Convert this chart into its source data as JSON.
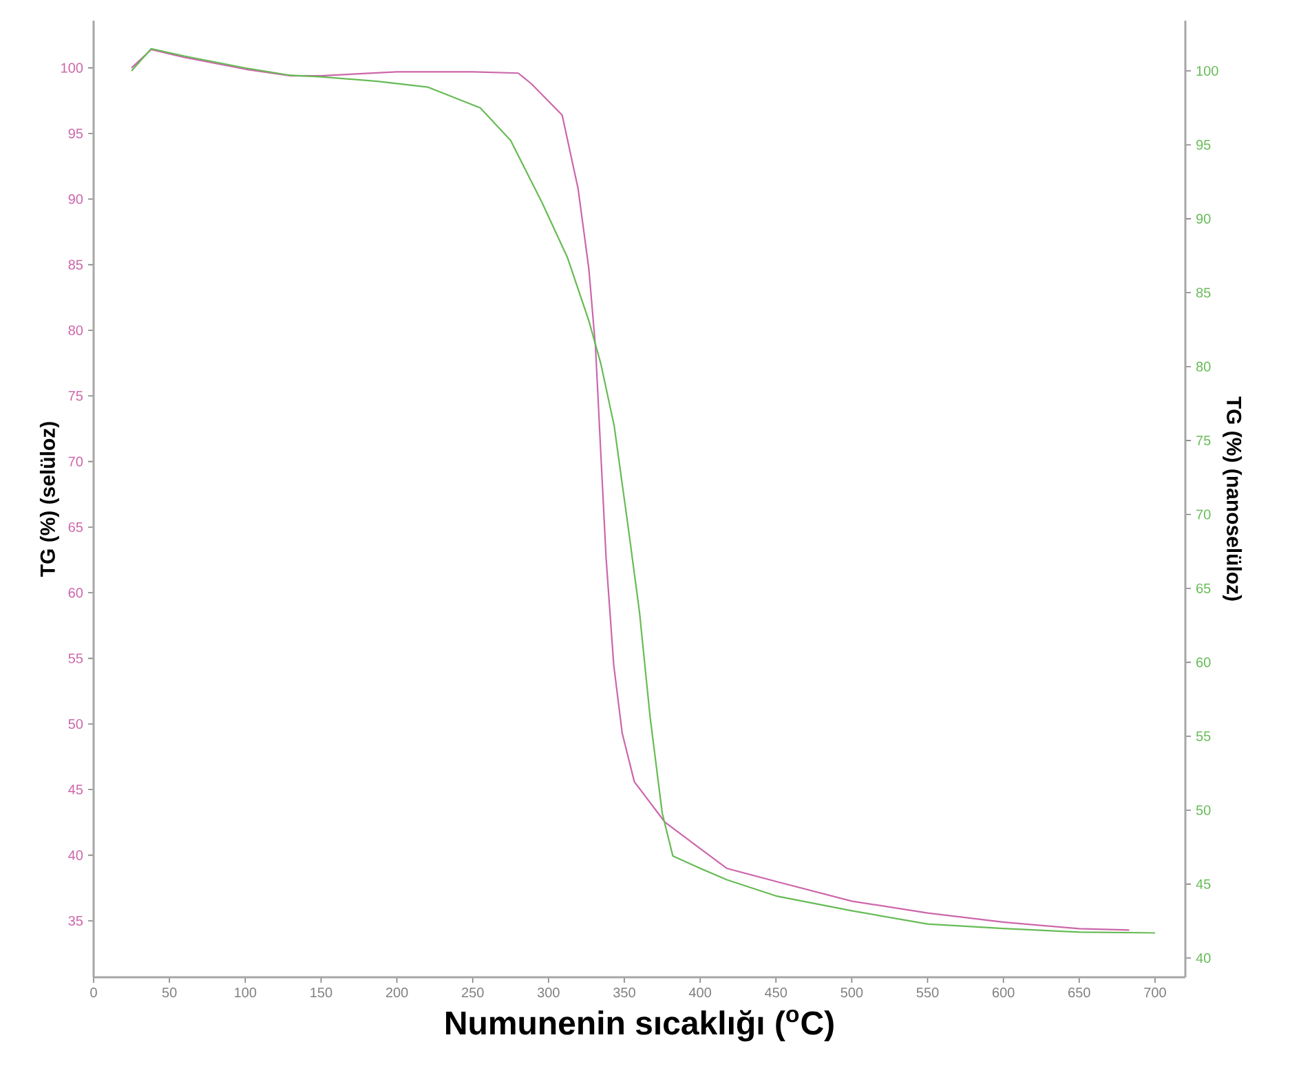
{
  "chart_data": {
    "type": "line",
    "xlabel": "Numunenin sıcaklığı ($^{o}$C)",
    "ylabel": "TG (%) (selüloz)",
    "y2label": "TG (%) (nanoselüloz)",
    "xlim": [
      0,
      720
    ],
    "xticks": [
      0,
      50,
      100,
      150,
      200,
      250,
      300,
      350,
      400,
      450,
      500,
      550,
      600,
      650,
      700
    ],
    "ylim": [
      30.7,
      103.6
    ],
    "yticks": [
      35,
      40,
      45,
      50,
      55,
      60,
      65,
      70,
      75,
      80,
      85,
      90,
      95,
      100
    ],
    "y2lim": [
      38.7,
      103.4
    ],
    "y2ticks": [
      40,
      45,
      50,
      55,
      60,
      65,
      70,
      75,
      80,
      85,
      90,
      95,
      100
    ],
    "series": [
      {
        "color": "#cc66aa",
        "x": [
          25,
          38,
          60,
          100,
          130,
          150,
          200,
          250,
          280,
          288.6,
          309,
          319.5,
          326.6,
          331,
          334.5,
          338,
          343,
          348.6,
          356.6,
          376.9,
          417.5,
          450,
          500,
          550,
          600,
          650,
          683
        ],
        "values": [
          100,
          101.4,
          100.8,
          99.9,
          99.4,
          99.4,
          99.7,
          99.7,
          99.6,
          98.8,
          96.4,
          90.8,
          84.7,
          78.7,
          70.6,
          62.6,
          54.5,
          49.3,
          45.6,
          42.5,
          39.0,
          38.0,
          36.5,
          35.6,
          34.9,
          34.4,
          34.3
        ]
      },
      {
        "color": "#66bb55",
        "axis": "y2",
        "x": [
          25,
          38,
          60,
          100,
          130,
          150,
          187,
          220.6,
          255,
          275,
          295.7,
          312.4,
          326.6,
          334.5,
          343.3,
          353,
          360,
          367,
          375,
          382,
          397,
          417.5,
          450,
          500,
          550,
          600,
          650,
          700
        ],
        "values": [
          100.0,
          101.5,
          101.0,
          100.2,
          99.7,
          99.6,
          99.3,
          98.9,
          97.5,
          95.3,
          91.1,
          87.4,
          83.1,
          80.2,
          76.0,
          68.8,
          63.4,
          56.3,
          49.8,
          46.9,
          46.2,
          45.3,
          44.2,
          43.2,
          42.3,
          42.0,
          41.75,
          41.7
        ]
      }
    ]
  }
}
